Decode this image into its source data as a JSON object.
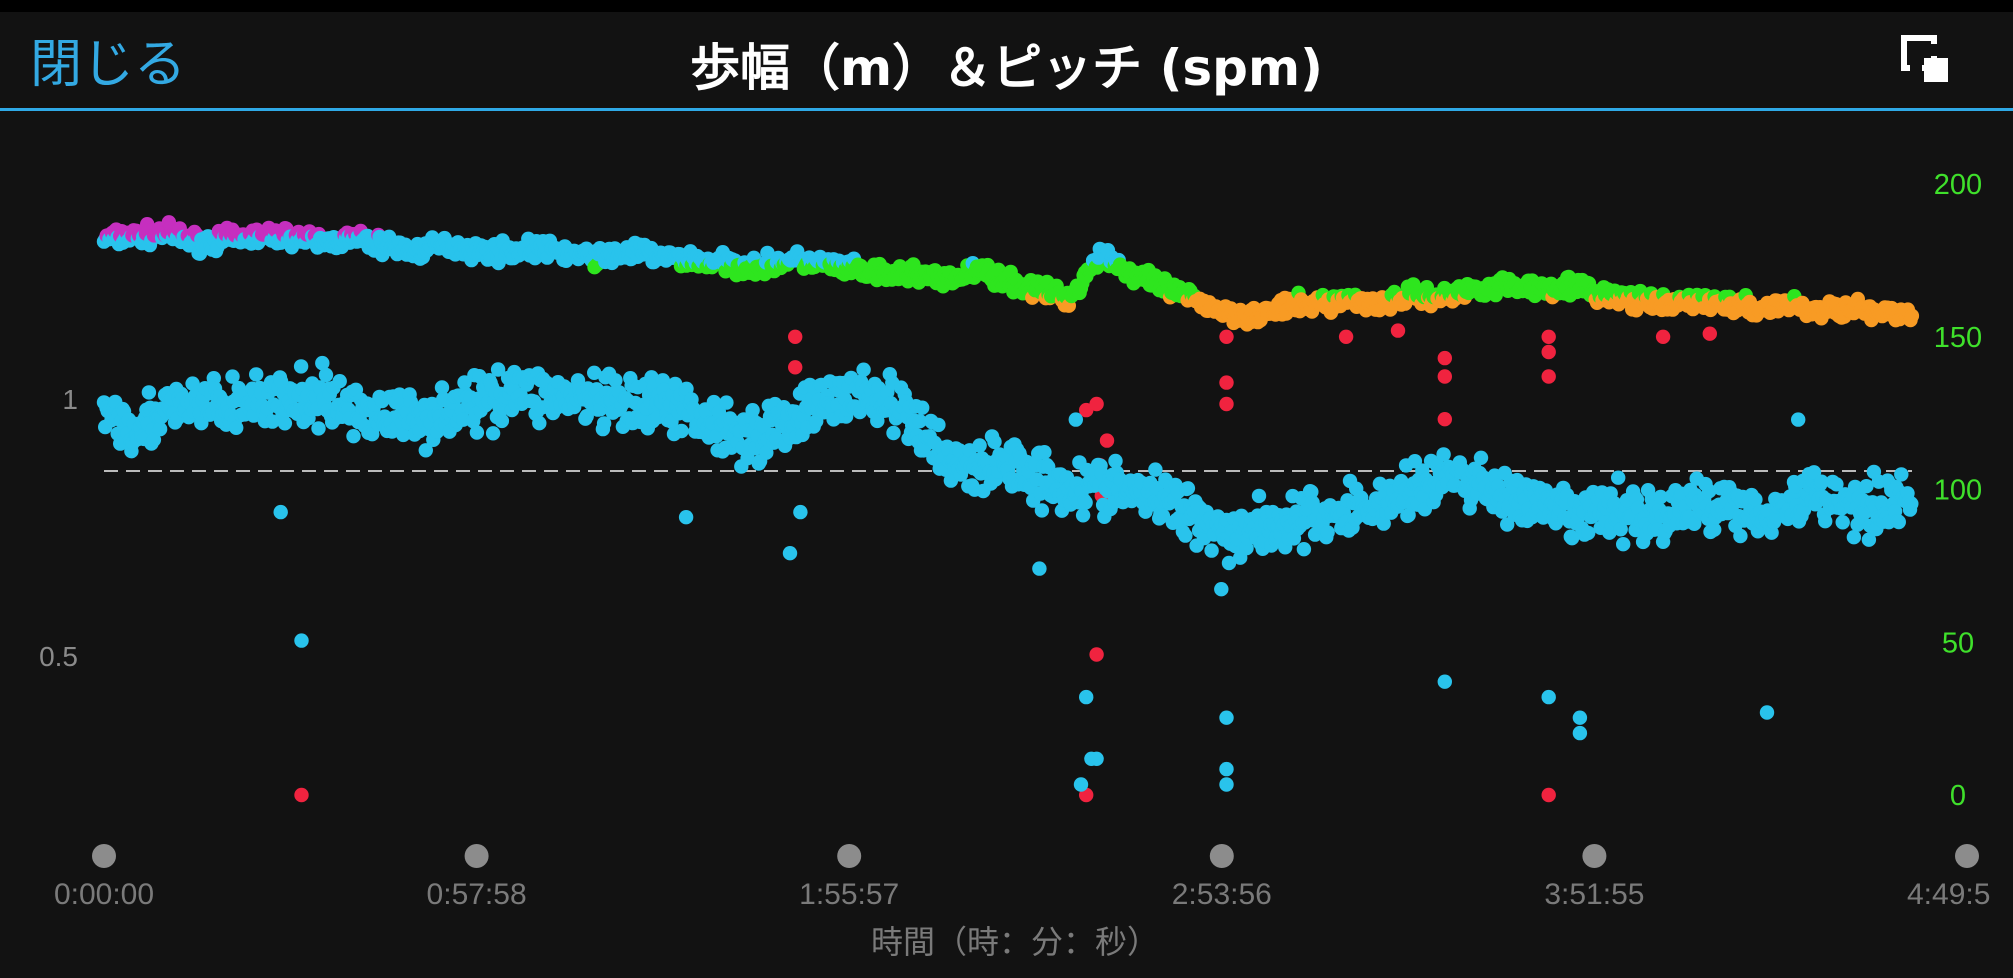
{
  "header": {
    "close_label": "閉じる",
    "title": "歩幅（m）＆ピッチ (spm)",
    "expand_icon": "expand-icon"
  },
  "colors": {
    "background": "#121212",
    "accent": "#2fa9e6",
    "stride": "#29c3ec",
    "cadence_zone_magenta": "#c62fbf",
    "cadence_zone_cyan": "#29c3ec",
    "cadence_zone_green": "#2ee51e",
    "cadence_zone_orange": "#f89b24",
    "cadence_zone_red": "#f0233f",
    "right_axis": "#3fe02b",
    "left_axis": "#8a8a8a"
  },
  "chart_data": {
    "type": "scatter",
    "xlabel": "時間（時：分：秒）",
    "x_tick_labels": [
      "0:00:00",
      "0:57:58",
      "1:55:57",
      "2:53:56",
      "3:51:55",
      "4:49:5"
    ],
    "x_range_seconds": [
      0,
      17395
    ],
    "left_axis": {
      "label": "",
      "ticks": [
        0.5,
        1
      ],
      "range": [
        0.2,
        1.55
      ]
    },
    "right_axis": {
      "label": "",
      "ticks": [
        0,
        50,
        100,
        150,
        200
      ],
      "range": [
        0,
        200
      ]
    },
    "reference_line": {
      "axis": "left",
      "value": 0.86,
      "style": "dashed"
    },
    "grid": false,
    "series": [
      {
        "key": "cadence",
        "axis": "right",
        "note_values": "spm, approximate trend sampled every 5 min",
        "values": [
          [
            0,
            182
          ],
          [
            300,
            183
          ],
          [
            600,
            184
          ],
          [
            900,
            181
          ],
          [
            1200,
            182
          ],
          [
            1500,
            183
          ],
          [
            1800,
            183
          ],
          [
            2100,
            181
          ],
          [
            2400,
            182
          ],
          [
            2700,
            180
          ],
          [
            3000,
            178
          ],
          [
            3300,
            180
          ],
          [
            3600,
            178
          ],
          [
            3900,
            178
          ],
          [
            4200,
            179
          ],
          [
            4500,
            177
          ],
          [
            4800,
            176
          ],
          [
            5100,
            178
          ],
          [
            5400,
            176
          ],
          [
            5700,
            175
          ],
          [
            6000,
            174
          ],
          [
            6300,
            173
          ],
          [
            6600,
            175
          ],
          [
            6900,
            174
          ],
          [
            7200,
            172
          ],
          [
            7500,
            170
          ],
          [
            7800,
            171
          ],
          [
            8100,
            168
          ],
          [
            8400,
            172
          ],
          [
            8700,
            168
          ],
          [
            9000,
            165
          ],
          [
            9300,
            163
          ],
          [
            9600,
            178
          ],
          [
            9900,
            170
          ],
          [
            10200,
            166
          ],
          [
            10500,
            162
          ],
          [
            10800,
            158
          ],
          [
            11100,
            157
          ],
          [
            11400,
            160
          ],
          [
            11700,
            161
          ],
          [
            12000,
            162
          ],
          [
            12300,
            161
          ],
          [
            12600,
            164
          ],
          [
            12900,
            163
          ],
          [
            13200,
            166
          ],
          [
            13500,
            167
          ],
          [
            13800,
            166
          ],
          [
            14100,
            167
          ],
          [
            14400,
            164
          ],
          [
            14700,
            162
          ],
          [
            15000,
            160
          ],
          [
            15300,
            162
          ],
          [
            15600,
            161
          ],
          [
            15900,
            159
          ],
          [
            16200,
            161
          ],
          [
            16500,
            158
          ],
          [
            16800,
            160
          ],
          [
            17100,
            157
          ],
          [
            17395,
            158
          ]
        ],
        "outliers": [
          [
            1900,
            0
          ],
          [
            6650,
            150
          ],
          [
            6650,
            140
          ],
          [
            9450,
            126
          ],
          [
            9450,
            0
          ],
          [
            9550,
            128
          ],
          [
            9550,
            46
          ],
          [
            9580,
            108
          ],
          [
            9600,
            98
          ],
          [
            9650,
            116
          ],
          [
            10800,
            150
          ],
          [
            10800,
            135
          ],
          [
            10800,
            128
          ],
          [
            12900,
            143
          ],
          [
            12900,
            137
          ],
          [
            12900,
            123
          ],
          [
            13900,
            150
          ],
          [
            13900,
            145
          ],
          [
            13900,
            137
          ],
          [
            13900,
            0
          ],
          [
            11950,
            150
          ],
          [
            12450,
            152
          ],
          [
            15000,
            150
          ],
          [
            15450,
            151
          ]
        ]
      },
      {
        "key": "stride",
        "axis": "left",
        "note_values": "m, approximate trend sampled every 5 min",
        "values": [
          [
            0,
            0.98
          ],
          [
            300,
            0.95
          ],
          [
            600,
            0.97
          ],
          [
            900,
            0.99
          ],
          [
            1200,
            0.98
          ],
          [
            1500,
            1.0
          ],
          [
            1800,
            0.99
          ],
          [
            2100,
            1.0
          ],
          [
            2400,
            0.98
          ],
          [
            2700,
            0.97
          ],
          [
            3000,
            0.96
          ],
          [
            3300,
            0.98
          ],
          [
            3600,
            0.99
          ],
          [
            3900,
            1.02
          ],
          [
            4200,
            1.01
          ],
          [
            4500,
            1.0
          ],
          [
            4800,
            0.99
          ],
          [
            5100,
            0.98
          ],
          [
            5400,
            0.99
          ],
          [
            5700,
            0.97
          ],
          [
            6000,
            0.94
          ],
          [
            6300,
            0.93
          ],
          [
            6600,
            0.96
          ],
          [
            6900,
            0.99
          ],
          [
            7200,
            1.01
          ],
          [
            7500,
            1.0
          ],
          [
            7800,
            0.95
          ],
          [
            8100,
            0.89
          ],
          [
            8400,
            0.86
          ],
          [
            8700,
            0.88
          ],
          [
            9000,
            0.85
          ],
          [
            9300,
            0.83
          ],
          [
            9600,
            0.83
          ],
          [
            9900,
            0.82
          ],
          [
            10200,
            0.8
          ],
          [
            10500,
            0.78
          ],
          [
            10800,
            0.74
          ],
          [
            11100,
            0.75
          ],
          [
            11400,
            0.76
          ],
          [
            11700,
            0.77
          ],
          [
            12000,
            0.78
          ],
          [
            12300,
            0.8
          ],
          [
            12600,
            0.82
          ],
          [
            12900,
            0.85
          ],
          [
            13200,
            0.84
          ],
          [
            13500,
            0.81
          ],
          [
            13800,
            0.79
          ],
          [
            14100,
            0.77
          ],
          [
            14400,
            0.78
          ],
          [
            14700,
            0.78
          ],
          [
            15000,
            0.77
          ],
          [
            15300,
            0.79
          ],
          [
            15600,
            0.8
          ],
          [
            15900,
            0.78
          ],
          [
            16200,
            0.79
          ],
          [
            16500,
            0.82
          ],
          [
            16800,
            0.79
          ],
          [
            17100,
            0.8
          ],
          [
            17395,
            0.81
          ]
        ],
        "outliers": [
          [
            1700,
            0.78
          ],
          [
            1900,
            0.53
          ],
          [
            5600,
            0.77
          ],
          [
            6600,
            0.7
          ],
          [
            6700,
            0.78
          ],
          [
            9000,
            0.67
          ],
          [
            9350,
            0.96
          ],
          [
            9450,
            0.42
          ],
          [
            9500,
            0.3
          ],
          [
            9400,
            0.25
          ],
          [
            9550,
            0.3
          ],
          [
            10750,
            0.63
          ],
          [
            10800,
            0.38
          ],
          [
            10800,
            0.25
          ],
          [
            10800,
            0.28
          ],
          [
            12900,
            0.45
          ],
          [
            13900,
            0.42
          ],
          [
            14200,
            0.35
          ],
          [
            14200,
            0.38
          ],
          [
            16000,
            0.39
          ],
          [
            16300,
            0.96
          ]
        ]
      }
    ]
  }
}
